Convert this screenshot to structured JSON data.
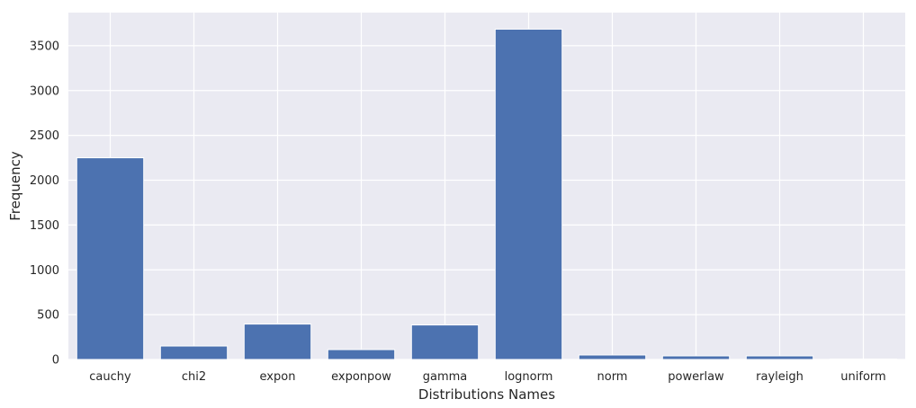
{
  "chart_data": {
    "type": "bar",
    "title": "",
    "xlabel": "Distributions Names",
    "ylabel": "Frequency",
    "categories": [
      "cauchy",
      "chi2",
      "expon",
      "exponpow",
      "gamma",
      "lognorm",
      "norm",
      "powerlaw",
      "rayleigh",
      "uniform"
    ],
    "values": [
      2250,
      150,
      395,
      110,
      385,
      3685,
      50,
      40,
      40,
      5
    ],
    "yticks": [
      0,
      500,
      1000,
      1500,
      2000,
      2500,
      3000,
      3500
    ],
    "ylim": [
      0,
      3870
    ],
    "grid": true,
    "colors": {
      "bar": "#4c72b0",
      "background": "#eaeaf2",
      "grid": "#ffffff",
      "text": "#262626"
    }
  }
}
